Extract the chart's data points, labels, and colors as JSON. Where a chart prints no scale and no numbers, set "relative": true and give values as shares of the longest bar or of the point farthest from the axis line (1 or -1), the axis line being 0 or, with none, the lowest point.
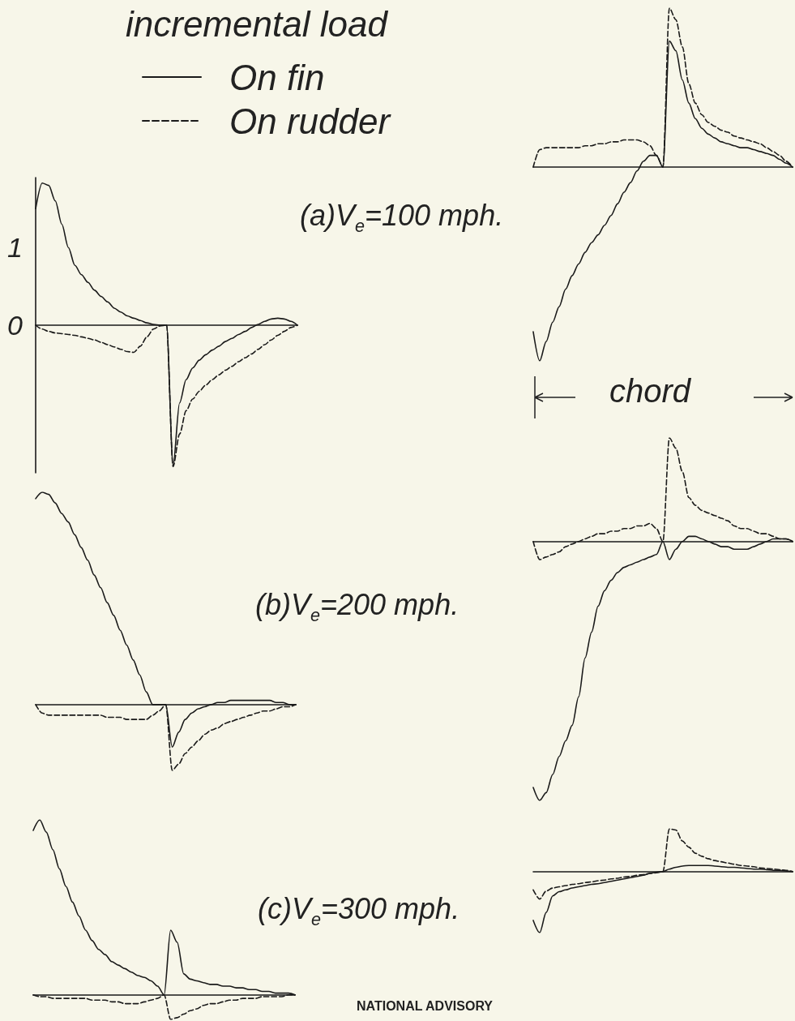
{
  "chart_data": [
    {
      "type": "line",
      "title": "(a)V$_{e}$=100 mph.",
      "legend_title": "incremental load",
      "legend": "top right",
      "marker": "none",
      "tick_labels": "y",
      "ylim": [
        -1.9,
        1.9
      ],
      "yticks": [
        0,
        1
      ],
      "categories": [
        null,
        null,
        null,
        null,
        null,
        null,
        null,
        null,
        null,
        null,
        null,
        null,
        null,
        null,
        null,
        null,
        null,
        null,
        null,
        null,
        null,
        null,
        null,
        null,
        null,
        null,
        null,
        null,
        null,
        null,
        null,
        null,
        null,
        null,
        null,
        null,
        null,
        null,
        null,
        null,
        null
      ],
      "series": [
        {
          "name": "On fin",
          "color": "#1a1a1a",
          "line_style": "solid",
          "values": [
            1.5,
            1.83,
            1.8,
            1.6,
            1.3,
            1.0,
            0.77,
            0.65,
            0.55,
            0.45,
            0.37,
            0.3,
            0.22,
            0.17,
            0.12,
            0.09,
            0.06,
            0.03,
            0.01,
            0,
            0,
            -1.8,
            -1.0,
            -0.7,
            -0.55,
            -0.45,
            -0.38,
            -0.32,
            -0.27,
            -0.21,
            -0.17,
            -0.12,
            -0.08,
            -0.03,
            0.01,
            0.05,
            0.08,
            0.09,
            0.08,
            0.05,
            0
          ]
        },
        {
          "name": "On rudder",
          "color": "#1a1a1a",
          "line_style": "dashed",
          "values": [
            0,
            -0.05,
            -0.08,
            -0.1,
            -0.11,
            -0.12,
            -0.13,
            -0.15,
            -0.17,
            -0.19,
            -0.22,
            -0.25,
            -0.28,
            -0.31,
            -0.34,
            -0.35,
            -0.27,
            -0.15,
            -0.05,
            -0.01,
            0,
            -1.82,
            -1.4,
            -1.1,
            -0.95,
            -0.85,
            -0.77,
            -0.7,
            -0.64,
            -0.58,
            -0.53,
            -0.47,
            -0.42,
            -0.37,
            -0.31,
            -0.25,
            -0.19,
            -0.13,
            -0.08,
            -0.03,
            0
          ]
        }
      ]
    },
    {
      "type": "line",
      "relative": true,
      "xlabel": "chord",
      "marker": "none",
      "grid": false,
      "tick_labels": false,
      "categories": [
        null,
        null,
        null,
        null,
        null,
        null,
        null,
        null,
        null,
        null,
        null,
        null,
        null,
        null,
        null,
        null,
        null,
        null,
        null,
        null,
        null,
        null,
        null,
        null,
        null,
        null,
        null,
        null,
        null,
        null,
        null,
        null,
        null,
        null,
        null,
        null,
        null,
        null,
        null,
        null,
        null
      ],
      "series": [
        {
          "color": "#1a1a1a",
          "line_style": "solid",
          "values": [
            -0.85,
            -1,
            -0.9,
            -0.8,
            -0.72,
            -0.63,
            -0.56,
            -0.5,
            -0.44,
            -0.39,
            -0.35,
            -0.3,
            -0.25,
            -0.19,
            -0.13,
            -0.08,
            -0.02,
            0.03,
            0.06,
            0.06,
            0,
            0.65,
            0.6,
            0.45,
            0.33,
            0.25,
            0.2,
            0.17,
            0.15,
            0.13,
            0.12,
            0.11,
            0.1,
            0.1,
            0.09,
            0.08,
            0.07,
            0.06,
            0.04,
            0.02,
            0
          ]
        },
        {
          "color": "#1a1a1a",
          "line_style": "dashed",
          "values": [
            0,
            0.09,
            0.1,
            0.1,
            0.1,
            0.1,
            0.1,
            0.1,
            0.11,
            0.11,
            0.12,
            0.12,
            0.13,
            0.13,
            0.14,
            0.14,
            0.14,
            0.13,
            0.11,
            0.06,
            0,
            0.82,
            0.76,
            0.62,
            0.43,
            0.33,
            0.27,
            0.23,
            0.21,
            0.19,
            0.18,
            0.16,
            0.15,
            0.14,
            0.13,
            0.12,
            0.1,
            0.08,
            0.06,
            0.03,
            0
          ]
        }
      ]
    },
    {
      "type": "line",
      "relative": true,
      "title": "(b)V$_{e}$=200 mph.",
      "marker": "none",
      "grid": false,
      "tick_labels": false,
      "categories": [
        null,
        null,
        null,
        null,
        null,
        null,
        null,
        null,
        null,
        null,
        null,
        null,
        null,
        null,
        null,
        null,
        null,
        null,
        null,
        null,
        null,
        null,
        null,
        null,
        null,
        null,
        null,
        null,
        null,
        null,
        null,
        null,
        null,
        null,
        null,
        null,
        null,
        null,
        null,
        null,
        null
      ],
      "series": [
        {
          "color": "#1a1a1a",
          "line_style": "solid",
          "values": [
            0.97,
            1,
            0.99,
            0.95,
            0.9,
            0.86,
            0.8,
            0.74,
            0.68,
            0.61,
            0.55,
            0.48,
            0.42,
            0.35,
            0.28,
            0.21,
            0.14,
            0.06,
            0,
            0,
            0,
            -0.2,
            -0.13,
            -0.07,
            -0.04,
            -0.02,
            -0.01,
            0,
            0.01,
            0.01,
            0.02,
            0.02,
            0.02,
            0.02,
            0.02,
            0.02,
            0.02,
            0.01,
            0.01,
            0,
            0
          ]
        },
        {
          "color": "#1a1a1a",
          "line_style": "dashed",
          "values": [
            0,
            -0.04,
            -0.05,
            -0.05,
            -0.05,
            -0.05,
            -0.05,
            -0.05,
            -0.05,
            -0.05,
            -0.05,
            -0.06,
            -0.06,
            -0.06,
            -0.07,
            -0.07,
            -0.07,
            -0.07,
            -0.05,
            -0.03,
            0,
            -0.31,
            -0.28,
            -0.23,
            -0.2,
            -0.17,
            -0.14,
            -0.12,
            -0.11,
            -0.09,
            -0.08,
            -0.07,
            -0.06,
            -0.05,
            -0.04,
            -0.03,
            -0.03,
            -0.02,
            -0.01,
            -0.01,
            0
          ]
        }
      ]
    },
    {
      "type": "line",
      "relative": true,
      "marker": "none",
      "grid": false,
      "tick_labels": false,
      "categories": [
        null,
        null,
        null,
        null,
        null,
        null,
        null,
        null,
        null,
        null,
        null,
        null,
        null,
        null,
        null,
        null,
        null,
        null,
        null,
        null,
        null,
        null,
        null,
        null,
        null,
        null,
        null,
        null,
        null,
        null,
        null,
        null,
        null,
        null,
        null,
        null,
        null,
        null,
        null,
        null,
        null
      ],
      "series": [
        {
          "color": "#1a1a1a",
          "line_style": "solid",
          "values": [
            -0.95,
            -1,
            -0.97,
            -0.9,
            -0.83,
            -0.77,
            -0.71,
            -0.6,
            -0.45,
            -0.35,
            -0.25,
            -0.19,
            -0.15,
            -0.12,
            -0.1,
            -0.09,
            -0.08,
            -0.07,
            -0.06,
            -0.05,
            0,
            -0.07,
            -0.03,
            0,
            0.02,
            0.02,
            0.01,
            0,
            -0.01,
            -0.02,
            -0.02,
            -0.03,
            -0.03,
            -0.03,
            -0.02,
            -0.01,
            0,
            0.01,
            0.01,
            0.01,
            0
          ]
        },
        {
          "color": "#1a1a1a",
          "line_style": "dashed",
          "values": [
            0,
            -0.07,
            -0.06,
            -0.05,
            -0.04,
            -0.02,
            -0.01,
            0,
            0.01,
            0.02,
            0.03,
            0.03,
            0.04,
            0.04,
            0.05,
            0.05,
            0.06,
            0.06,
            0.07,
            0.05,
            0,
            0.4,
            0.36,
            0.27,
            0.17,
            0.14,
            0.12,
            0.11,
            0.1,
            0.09,
            0.08,
            0.06,
            0.05,
            0.05,
            0.04,
            0.03,
            0.03,
            0.02,
            0.01,
            0.01,
            0
          ]
        }
      ]
    },
    {
      "type": "line",
      "relative": true,
      "title": "(c)V$_{e}$=300 mph.",
      "annotations": [
        "NATIONAL ADVISORY"
      ],
      "marker": "none",
      "grid": false,
      "tick_labels": false,
      "categories": [
        null,
        null,
        null,
        null,
        null,
        null,
        null,
        null,
        null,
        null,
        null,
        null,
        null,
        null,
        null,
        null,
        null,
        null,
        null,
        null,
        null,
        null,
        null,
        null,
        null,
        null,
        null,
        null,
        null,
        null,
        null,
        null,
        null,
        null,
        null,
        null,
        null,
        null,
        null,
        null,
        null
      ],
      "series": [
        {
          "color": "#1a1a1a",
          "line_style": "solid",
          "values": [
            0.94,
            1,
            0.93,
            0.83,
            0.72,
            0.62,
            0.53,
            0.45,
            0.37,
            0.31,
            0.26,
            0.23,
            0.19,
            0.17,
            0.15,
            0.13,
            0.11,
            0.1,
            0.08,
            0.05,
            0,
            0.37,
            0.3,
            0.12,
            0.09,
            0.08,
            0.07,
            0.06,
            0.06,
            0.05,
            0.05,
            0.04,
            0.04,
            0.03,
            0.03,
            0.02,
            0.02,
            0.01,
            0.01,
            0.01,
            0
          ]
        },
        {
          "color": "#1a1a1a",
          "line_style": "dashed",
          "values": [
            0,
            -0.01,
            -0.01,
            -0.02,
            -0.02,
            -0.02,
            -0.02,
            -0.02,
            -0.02,
            -0.03,
            -0.03,
            -0.03,
            -0.04,
            -0.04,
            -0.05,
            -0.05,
            -0.05,
            -0.04,
            -0.03,
            -0.02,
            0,
            -0.14,
            -0.13,
            -0.11,
            -0.09,
            -0.08,
            -0.06,
            -0.05,
            -0.05,
            -0.04,
            -0.03,
            -0.03,
            -0.02,
            -0.02,
            -0.02,
            -0.01,
            -0.01,
            -0.01,
            -0.01,
            0,
            0
          ]
        }
      ]
    },
    {
      "type": "line",
      "relative": true,
      "marker": "none",
      "grid": false,
      "tick_labels": false,
      "categories": [
        null,
        null,
        null,
        null,
        null,
        null,
        null,
        null,
        null,
        null,
        null,
        null,
        null,
        null,
        null,
        null,
        null,
        null,
        null,
        null,
        null,
        null,
        null,
        null,
        null,
        null,
        null,
        null,
        null,
        null,
        null,
        null,
        null,
        null,
        null,
        null,
        null,
        null,
        null,
        null,
        null
      ],
      "series": [
        {
          "color": "#1a1a1a",
          "line_style": "solid",
          "values": [
            -0.8,
            -1,
            -0.67,
            -0.4,
            -0.33,
            -0.3,
            -0.27,
            -0.25,
            -0.23,
            -0.21,
            -0.2,
            -0.18,
            -0.16,
            -0.14,
            -0.12,
            -0.1,
            -0.08,
            -0.06,
            -0.03,
            -0.01,
            0,
            0.04,
            0.07,
            0.09,
            0.1,
            0.1,
            0.1,
            0.1,
            0.09,
            0.08,
            0.07,
            0.07,
            0.06,
            0.05,
            0.04,
            0.04,
            0.03,
            0.02,
            0.02,
            0.01,
            0
          ]
        },
        {
          "color": "#1a1a1a",
          "line_style": "dashed",
          "values": [
            -0.3,
            -0.45,
            -0.32,
            -0.27,
            -0.25,
            -0.23,
            -0.21,
            -0.2,
            -0.18,
            -0.17,
            -0.15,
            -0.14,
            -0.12,
            -0.11,
            -0.09,
            -0.08,
            -0.06,
            -0.05,
            -0.03,
            -0.02,
            0,
            0.7,
            0.68,
            0.5,
            0.4,
            0.3,
            0.25,
            0.21,
            0.18,
            0.16,
            0.14,
            0.12,
            0.1,
            0.09,
            0.08,
            0.06,
            0.05,
            0.04,
            0.03,
            0.02,
            0
          ]
        }
      ]
    }
  ]
}
